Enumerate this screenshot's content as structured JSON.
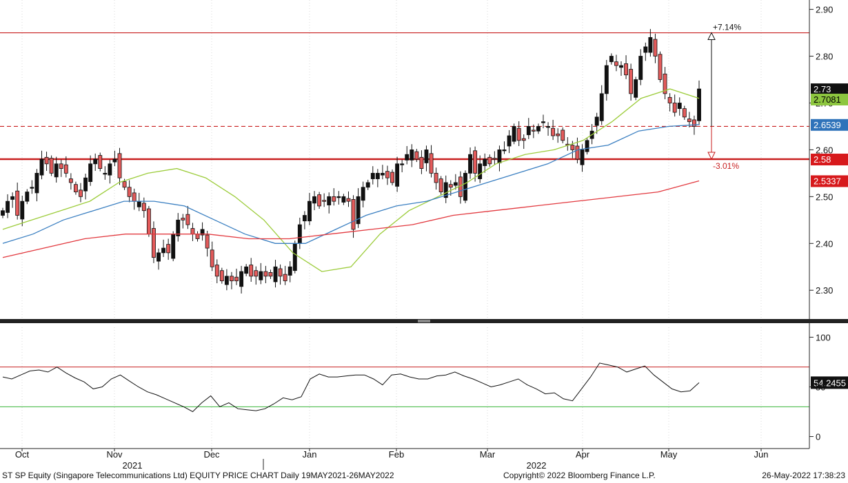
{
  "chart_data": [
    {
      "type": "candlestick",
      "title": "",
      "ylim": [
        2.24,
        2.92
      ],
      "y_ticks": [
        "2.90",
        "2.80",
        "2.70",
        "2.60",
        "2.50",
        "2.40",
        "2.30"
      ],
      "x_ticks": [
        "Oct",
        "Nov",
        "Dec",
        "Jan",
        "Feb",
        "Mar",
        "Apr",
        "May",
        "Jun"
      ],
      "year_labels": [
        "2021",
        "2022"
      ],
      "ohlc_close": [
        2.47,
        2.49,
        2.5,
        2.46,
        2.49,
        2.51,
        2.52,
        2.55,
        2.58,
        2.57,
        2.55,
        2.57,
        2.56,
        2.55,
        2.53,
        2.51,
        2.5,
        2.54,
        2.57,
        2.58,
        2.56,
        2.55,
        2.57,
        2.58,
        2.54,
        2.52,
        2.5,
        2.49,
        2.49,
        2.47,
        2.42,
        2.37,
        2.38,
        2.39,
        2.38,
        2.42,
        2.45,
        2.45,
        2.44,
        2.42,
        2.41,
        2.43,
        2.39,
        2.35,
        2.33,
        2.32,
        2.33,
        2.32,
        2.32,
        2.34,
        2.35,
        2.33,
        2.33,
        2.34,
        2.33,
        2.33,
        2.35,
        2.33,
        2.32,
        2.35,
        2.4,
        2.44,
        2.46,
        2.49,
        2.5,
        2.48,
        2.49,
        2.5,
        2.49,
        2.5,
        2.5,
        2.49,
        2.43,
        2.5,
        2.52,
        2.53,
        2.55,
        2.55,
        2.55,
        2.54,
        2.53,
        2.57,
        2.57,
        2.59,
        2.6,
        2.58,
        2.56,
        2.6,
        2.55,
        2.53,
        2.51,
        2.53,
        2.52,
        2.53,
        2.5,
        2.55,
        2.59,
        2.55,
        2.57,
        2.58,
        2.57,
        2.58,
        2.6,
        2.6,
        2.63,
        2.65,
        2.62,
        2.62,
        2.65,
        2.64,
        2.65,
        2.66,
        2.65,
        2.63,
        2.63,
        2.62,
        2.61,
        2.6,
        2.58,
        2.6,
        2.62,
        2.64,
        2.67,
        2.72,
        2.78,
        2.8,
        2.78,
        2.78,
        2.76,
        2.72,
        2.75,
        2.8,
        2.82,
        2.84,
        2.8,
        2.75,
        2.72,
        2.7,
        2.68,
        2.7,
        2.67,
        2.66,
        2.65,
        2.73
      ],
      "ma": [
        {
          "name": "",
          "color": "#9ccc3a",
          "values": [
            2.43,
            2.45,
            2.47,
            2.49,
            2.53,
            2.55,
            2.56,
            2.54,
            2.5,
            2.45,
            2.38,
            2.34,
            2.35,
            2.42,
            2.47,
            2.5,
            2.53,
            2.57,
            2.59,
            2.6,
            2.62,
            2.66,
            2.71,
            2.73,
            2.71
          ]
        },
        {
          "name": "",
          "color": "#3a7fc1",
          "values": [
            2.4,
            2.42,
            2.45,
            2.47,
            2.49,
            2.49,
            2.48,
            2.45,
            2.42,
            2.4,
            2.4,
            2.43,
            2.46,
            2.48,
            2.49,
            2.51,
            2.53,
            2.55,
            2.57,
            2.6,
            2.61,
            2.64,
            2.65,
            2.6539
          ]
        },
        {
          "name": "",
          "color": "#e2383e",
          "values": [
            2.37,
            2.39,
            2.41,
            2.42,
            2.42,
            2.42,
            2.41,
            2.41,
            2.42,
            2.43,
            2.44,
            2.46,
            2.47,
            2.48,
            2.49,
            2.5,
            2.51,
            2.5337
          ]
        }
      ],
      "levels": [
        {
          "kind": "solid",
          "value": 2.85,
          "color": "#c81e1e"
        },
        {
          "kind": "dashed",
          "value": 2.65,
          "color": "#c81e1e"
        },
        {
          "kind": "thick",
          "value": 2.58,
          "color": "#c81e1e"
        }
      ],
      "annotations": [
        "+7.14%",
        "-3.01%"
      ],
      "price_tags": [
        {
          "label": "2.73",
          "bg": "#111111",
          "fg": "#ffffff"
        },
        {
          "label": "2.7081",
          "bg": "#8dc63f",
          "fg": "#000000"
        },
        {
          "label": "2.6539",
          "bg": "#2f73ba",
          "fg": "#ffffff"
        },
        {
          "label": "2.58",
          "bg": "#d7191c",
          "fg": "#ffffff"
        },
        {
          "label": "2.5337",
          "bg": "#d7191c",
          "fg": "#ffffff"
        }
      ]
    },
    {
      "type": "line",
      "ylim": [
        -10,
        110
      ],
      "y_ticks": [
        "100",
        "50",
        "0"
      ],
      "upper": 70,
      "lower": 30,
      "values": [
        60,
        58,
        62,
        66,
        67,
        65,
        70,
        64,
        59,
        55,
        48,
        50,
        58,
        62,
        56,
        50,
        45,
        42,
        38,
        34,
        30,
        25,
        34,
        41,
        30,
        34,
        28,
        27,
        26,
        28,
        33,
        39,
        37,
        40,
        58,
        63,
        60,
        60,
        61,
        62,
        62,
        58,
        52,
        62,
        63,
        60,
        58,
        58,
        61,
        62,
        65,
        61,
        58,
        54,
        50,
        52,
        55,
        58,
        52,
        48,
        43,
        44,
        38,
        36,
        48,
        60,
        74,
        72,
        70,
        65,
        68,
        71,
        62,
        55,
        48,
        45,
        46,
        54.2455
      ],
      "value_tag": "54.2455"
    }
  ],
  "footer": {
    "left": "ST SP Equity (Singapore Telecommunications Ltd) EQUITY PRICE CHART  Daily 19MAY2021-26MAY2022",
    "center": "Copyright© 2022 Bloomberg Finance L.P.",
    "right": "26-May-2022 17:38:23"
  }
}
